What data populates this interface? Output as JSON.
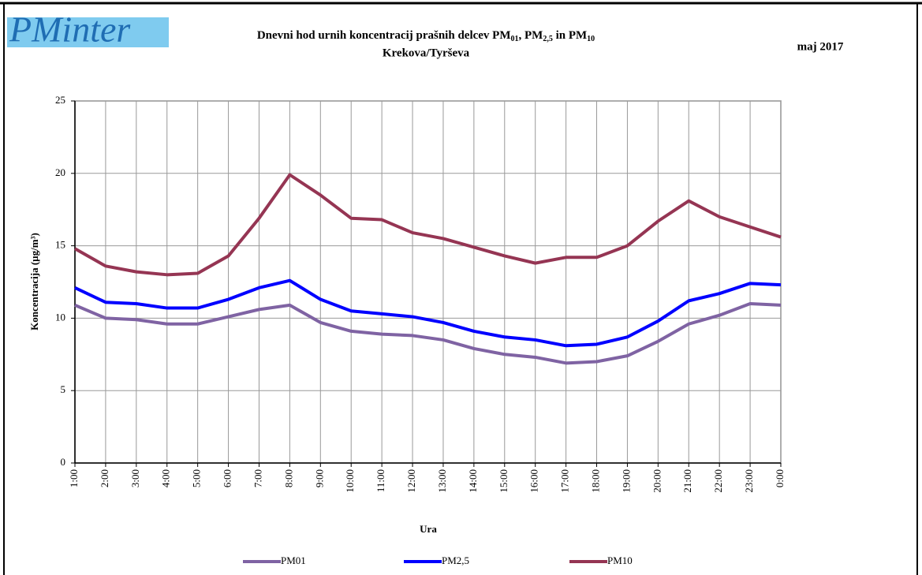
{
  "chart_data": {
    "type": "line",
    "logo": "PMinter",
    "title_parts": [
      {
        "text": "Dnevni hod urnih koncentracij prašnih delcev PM",
        "subscript": false
      },
      {
        "text": "01",
        "subscript": true
      },
      {
        "text": ", PM",
        "subscript": false
      },
      {
        "text": "2,5",
        "subscript": true
      },
      {
        "text": " in PM",
        "subscript": false
      },
      {
        "text": "10",
        "subscript": true
      }
    ],
    "subtitle": "Krekova/Tyrševa",
    "date_label": "maj 2017",
    "x_label": "Ura",
    "y_label": "Koncentracija (µg/m³)",
    "categories": [
      "1:00",
      "2:00",
      "3:00",
      "4:00",
      "5:00",
      "6:00",
      "7:00",
      "8:00",
      "9:00",
      "10:00",
      "11:00",
      "12:00",
      "13:00",
      "14:00",
      "15:00",
      "16:00",
      "17:00",
      "18:00",
      "19:00",
      "20:00",
      "21:00",
      "22:00",
      "23:00",
      "0:00"
    ],
    "series": [
      {
        "name": "PM01",
        "color": "#7f63a3",
        "values": [
          10.9,
          10.0,
          9.9,
          9.6,
          9.6,
          10.1,
          10.6,
          10.9,
          9.7,
          9.1,
          8.9,
          8.8,
          8.5,
          7.9,
          7.5,
          7.3,
          6.9,
          7.0,
          7.4,
          8.4,
          9.6,
          10.2,
          11.0,
          10.9
        ]
      },
      {
        "name": "PM2,5",
        "color": "#0000ff",
        "values": [
          12.1,
          11.1,
          11.0,
          10.7,
          10.7,
          11.3,
          12.1,
          12.6,
          11.3,
          10.5,
          10.3,
          10.1,
          9.7,
          9.1,
          8.7,
          8.5,
          8.1,
          8.2,
          8.7,
          9.8,
          11.2,
          11.7,
          12.4,
          12.3
        ]
      },
      {
        "name": "PM10",
        "color": "#953553",
        "values": [
          14.8,
          13.6,
          13.2,
          13.0,
          13.1,
          14.3,
          16.9,
          19.9,
          18.5,
          16.9,
          16.8,
          15.9,
          15.5,
          14.9,
          14.3,
          13.8,
          14.2,
          14.2,
          15.0,
          16.7,
          18.1,
          17.0,
          16.3,
          15.6
        ]
      }
    ],
    "ylim": [
      0,
      25
    ],
    "yticks": [
      0,
      5,
      10,
      15,
      20,
      25
    ],
    "grid": true,
    "legend": "bottom"
  }
}
